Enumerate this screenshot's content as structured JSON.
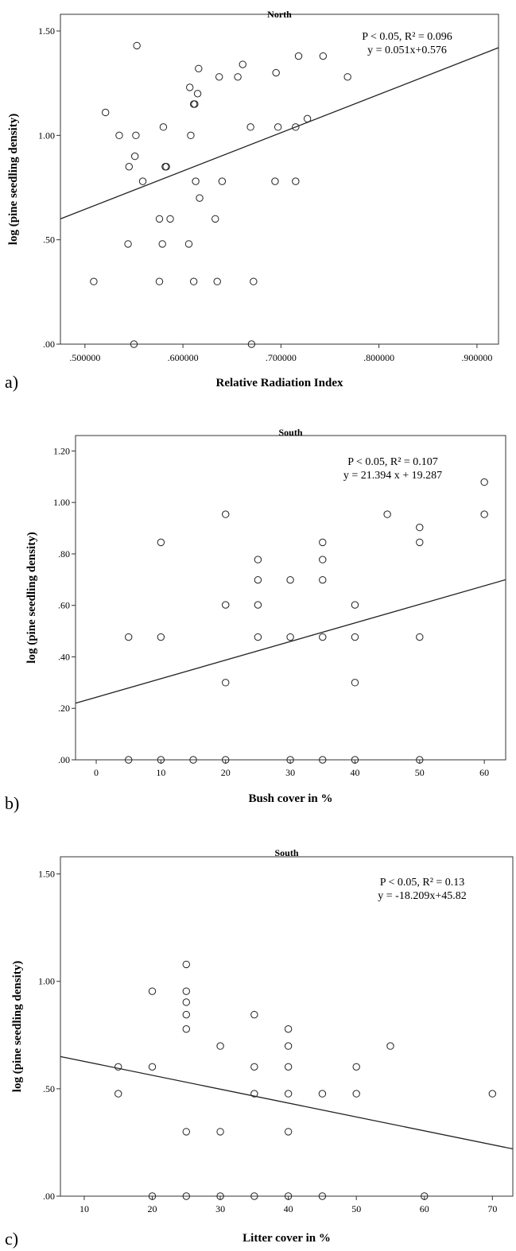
{
  "chart_data": [
    {
      "type": "scatter",
      "panel_label": "a)",
      "title": "North",
      "xlabel": "Relative Radiation Index",
      "ylabel": "log (pine seedling density)",
      "xlim": [
        0.475,
        0.922
      ],
      "ylim": [
        0.0,
        1.58
      ],
      "xticks": [
        0.5,
        0.6,
        0.7,
        0.8,
        0.9
      ],
      "xtick_labels": [
        ".500000",
        ".600000",
        ".700000",
        ".800000",
        ".900000"
      ],
      "yticks": [
        0.0,
        0.5,
        1.0,
        1.5
      ],
      "ytick_labels": [
        ".00",
        ".50",
        "1.00",
        "1.50"
      ],
      "annotation_lines": [
        "P < 0.05, R² = 0.096",
        "y = 0.051x+0.576"
      ],
      "fit_line": {
        "x": [
          0.475,
          0.922
        ],
        "y": [
          0.6,
          1.42
        ]
      },
      "points": [
        [
          0.553,
          1.43
        ],
        [
          0.521,
          1.11
        ],
        [
          0.535,
          1.0
        ],
        [
          0.552,
          1.0
        ],
        [
          0.551,
          0.9
        ],
        [
          0.545,
          0.85
        ],
        [
          0.559,
          0.78
        ],
        [
          0.58,
          1.04
        ],
        [
          0.582,
          0.85
        ],
        [
          0.583,
          0.85
        ],
        [
          0.576,
          0.6
        ],
        [
          0.587,
          0.6
        ],
        [
          0.544,
          0.48
        ],
        [
          0.579,
          0.48
        ],
        [
          0.509,
          0.3
        ],
        [
          0.576,
          0.3
        ],
        [
          0.55,
          0.0
        ],
        [
          0.607,
          1.23
        ],
        [
          0.616,
          1.32
        ],
        [
          0.611,
          1.15
        ],
        [
          0.612,
          1.15
        ],
        [
          0.615,
          1.2
        ],
        [
          0.608,
          1.0
        ],
        [
          0.613,
          0.78
        ],
        [
          0.617,
          0.7
        ],
        [
          0.606,
          0.48
        ],
        [
          0.611,
          0.3
        ],
        [
          0.637,
          1.28
        ],
        [
          0.656,
          1.28
        ],
        [
          0.661,
          1.34
        ],
        [
          0.64,
          0.78
        ],
        [
          0.633,
          0.6
        ],
        [
          0.635,
          0.3
        ],
        [
          0.669,
          1.04
        ],
        [
          0.672,
          0.3
        ],
        [
          0.67,
          0.0
        ],
        [
          0.695,
          1.3
        ],
        [
          0.697,
          1.04
        ],
        [
          0.694,
          0.78
        ],
        [
          0.718,
          1.38
        ],
        [
          0.715,
          1.04
        ],
        [
          0.727,
          1.08
        ],
        [
          0.715,
          0.78
        ],
        [
          0.743,
          1.38
        ],
        [
          0.768,
          1.28
        ]
      ]
    },
    {
      "type": "scatter",
      "panel_label": "b)",
      "title": "South",
      "xlabel": "Bush cover in %",
      "ylabel": "log (pine seedling density)",
      "xlim": [
        -3.2,
        63.3
      ],
      "ylim": [
        0.0,
        1.26
      ],
      "xticks": [
        0,
        10,
        20,
        30,
        40,
        50,
        60
      ],
      "xtick_labels": [
        "0",
        "10",
        "20",
        "30",
        "40",
        "50",
        "60"
      ],
      "yticks": [
        0.0,
        0.2,
        0.4,
        0.6,
        0.8,
        1.0,
        1.2
      ],
      "ytick_labels": [
        ".00",
        ".20",
        ".40",
        ".60",
        ".80",
        "1.00",
        "1.20"
      ],
      "annotation_lines": [
        "P < 0.05, R² = 0.107",
        "y = 21.394 x + 19.287"
      ],
      "fit_line": {
        "x": [
          -3.2,
          63.3
        ],
        "y": [
          0.22,
          0.7
        ]
      },
      "points": [
        [
          5,
          0.477
        ],
        [
          5,
          0.0
        ],
        [
          10,
          0.845
        ],
        [
          10,
          0.477
        ],
        [
          10,
          0.0
        ],
        [
          15,
          0.0
        ],
        [
          20,
          0.954
        ],
        [
          20,
          0.602
        ],
        [
          20,
          0.3
        ],
        [
          20,
          0.0
        ],
        [
          25,
          0.778
        ],
        [
          25,
          0.699
        ],
        [
          25,
          0.602
        ],
        [
          25,
          0.477
        ],
        [
          30,
          0.699
        ],
        [
          30,
          0.477
        ],
        [
          30,
          0.0
        ],
        [
          35,
          0.845
        ],
        [
          35,
          0.778
        ],
        [
          35,
          0.699
        ],
        [
          35,
          0.477
        ],
        [
          35,
          0.0
        ],
        [
          40,
          0.602
        ],
        [
          40,
          0.477
        ],
        [
          40,
          0.3
        ],
        [
          40,
          0.0
        ],
        [
          45,
          0.954
        ],
        [
          50,
          0.903
        ],
        [
          50,
          0.845
        ],
        [
          50,
          0.477
        ],
        [
          50,
          0.0
        ],
        [
          60,
          1.079
        ],
        [
          60,
          0.954
        ]
      ]
    },
    {
      "type": "scatter",
      "panel_label": "c)",
      "title": "South",
      "xlabel": "Litter cover in %",
      "ylabel": "log (pine seedling density)",
      "xlim": [
        6.5,
        73.0
      ],
      "ylim": [
        0.0,
        1.58
      ],
      "xticks": [
        10,
        20,
        30,
        40,
        50,
        60,
        70
      ],
      "xtick_labels": [
        "10",
        "20",
        "30",
        "40",
        "50",
        "60",
        "70"
      ],
      "yticks": [
        0.0,
        0.5,
        1.0,
        1.5
      ],
      "ytick_labels": [
        ".00",
        ".50",
        "1.00",
        "1.50"
      ],
      "annotation_lines": [
        "P <  0.05, R² = 0.13",
        "y = -18.209x+45.82"
      ],
      "fit_line": {
        "x": [
          6.5,
          73.0
        ],
        "y": [
          0.65,
          0.22
        ]
      },
      "points": [
        [
          15,
          0.602
        ],
        [
          15,
          0.477
        ],
        [
          20,
          0.954
        ],
        [
          20,
          0.602
        ],
        [
          20,
          0.0
        ],
        [
          25,
          1.079
        ],
        [
          25,
          0.954
        ],
        [
          25,
          0.903
        ],
        [
          25,
          0.845
        ],
        [
          25,
          0.778
        ],
        [
          25,
          0.3
        ],
        [
          25,
          0.0
        ],
        [
          30,
          0.699
        ],
        [
          30,
          0.3
        ],
        [
          30,
          0.0
        ],
        [
          35,
          0.845
        ],
        [
          35,
          0.602
        ],
        [
          35,
          0.477
        ],
        [
          35,
          0.0
        ],
        [
          40,
          0.778
        ],
        [
          40,
          0.699
        ],
        [
          40,
          0.602
        ],
        [
          40,
          0.477
        ],
        [
          40,
          0.3
        ],
        [
          40,
          0.0
        ],
        [
          45,
          0.477
        ],
        [
          45,
          0.0
        ],
        [
          50,
          0.602
        ],
        [
          50,
          0.477
        ],
        [
          55,
          0.699
        ],
        [
          60,
          0.0
        ],
        [
          70,
          0.477
        ]
      ]
    }
  ]
}
